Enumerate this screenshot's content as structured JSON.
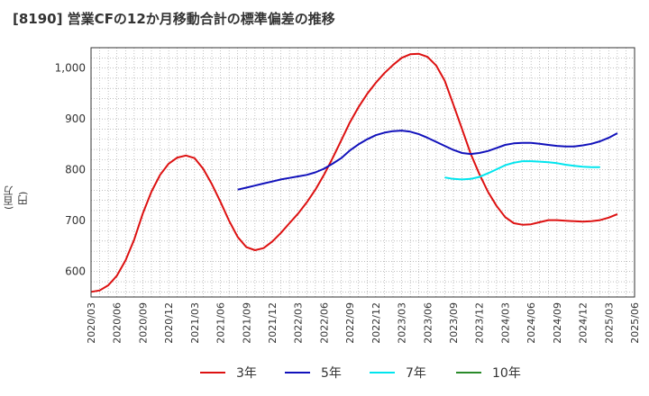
{
  "title": "[8190]  営業CFの12か月移動合計の標準偏差の推移",
  "chart_data": {
    "type": "line",
    "title": "[8190]  営業CFの12か月移動合計の標準偏差の推移",
    "xlabel": "",
    "ylabel": "(百万円)",
    "ylim": [
      550,
      1040
    ],
    "yticks": [
      600,
      700,
      800,
      900,
      1000
    ],
    "ytick_labels": [
      "600",
      "700",
      "800",
      "900",
      "1,000"
    ],
    "xticks": [
      "2020/03",
      "2020/06",
      "2020/09",
      "2020/12",
      "2021/03",
      "2021/06",
      "2021/09",
      "2021/12",
      "2022/03",
      "2022/06",
      "2022/09",
      "2022/12",
      "2023/03",
      "2023/06",
      "2023/09",
      "2023/12",
      "2024/03",
      "2024/06",
      "2024/09",
      "2024/12",
      "2025/03",
      "2025/06"
    ],
    "x_start": "2020/03",
    "grid": true,
    "legend_position": "bottom",
    "series": [
      {
        "name": "3年",
        "color": "#dd1111",
        "start": "2020/03",
        "values": [
          560,
          563,
          573,
          592,
          622,
          663,
          714,
          757,
          790,
          812,
          824,
          828,
          823,
          802,
          772,
          737,
          700,
          668,
          648,
          642,
          646,
          659,
          676,
          695,
          714,
          736,
          761,
          790,
          823,
          858,
          893,
          923,
          949,
          971,
          990,
          1006,
          1020,
          1027,
          1028,
          1022,
          1005,
          975,
          928,
          880,
          832,
          792,
          757,
          729,
          707,
          695,
          692,
          693,
          697,
          701,
          701,
          700,
          699,
          698,
          699,
          701,
          706,
          713
        ]
      },
      {
        "name": "5年",
        "color": "#1111bb",
        "start": "2021/08",
        "values": [
          761,
          765,
          769,
          773,
          777,
          781,
          784,
          787,
          790,
          795,
          802,
          812,
          823,
          838,
          850,
          860,
          868,
          873,
          876,
          877,
          875,
          870,
          863,
          855,
          847,
          839,
          833,
          831,
          833,
          837,
          843,
          849,
          852,
          853,
          853,
          851,
          849,
          847,
          846,
          846,
          848,
          851,
          856,
          863,
          872
        ]
      },
      {
        "name": "7年",
        "color": "#00e5ee",
        "start": "2023/08",
        "values": [
          785,
          782,
          781,
          782,
          786,
          793,
          801,
          809,
          814,
          817,
          817,
          816,
          815,
          813,
          810,
          808,
          806,
          805,
          805
        ]
      },
      {
        "name": "10年",
        "color": "#2a8a2a",
        "start": null,
        "values": []
      }
    ]
  }
}
